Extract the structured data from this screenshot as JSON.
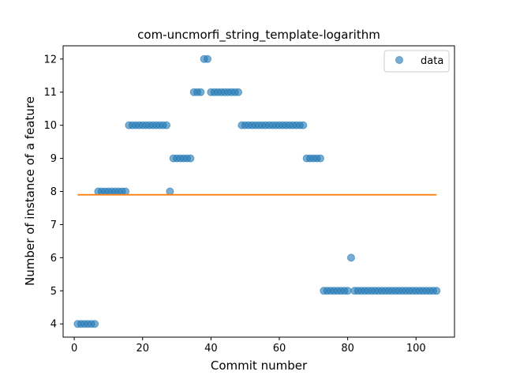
{
  "chart_data": {
    "type": "scatter",
    "title": "com-uncmorfi_string_template-logarithm",
    "xlabel": "Commit number",
    "ylabel": "Number of instance of a feature",
    "xlim": [
      -3.25,
      111.25
    ],
    "ylim": [
      3.6,
      12.4
    ],
    "xticks": [
      0,
      20,
      40,
      60,
      80,
      100
    ],
    "yticks": [
      4,
      5,
      6,
      7,
      8,
      9,
      10,
      11,
      12
    ],
    "grid": false,
    "legend_position": "top-right",
    "colors": {
      "scatter": "#1f77b4",
      "line": "#ff7f0e"
    },
    "series": [
      {
        "name": "data",
        "kind": "scatter",
        "x": [
          1,
          2,
          3,
          4,
          5,
          6,
          7,
          8,
          9,
          10,
          11,
          12,
          13,
          14,
          15,
          16,
          17,
          18,
          19,
          20,
          21,
          22,
          23,
          24,
          25,
          26,
          27,
          28,
          29,
          30,
          31,
          32,
          33,
          34,
          35,
          36,
          37,
          38,
          39,
          40,
          41,
          42,
          43,
          44,
          45,
          46,
          47,
          48,
          49,
          50,
          51,
          52,
          53,
          54,
          55,
          56,
          57,
          58,
          59,
          60,
          61,
          62,
          63,
          64,
          65,
          66,
          67,
          68,
          69,
          70,
          71,
          72,
          73,
          74,
          75,
          76,
          77,
          78,
          79,
          80,
          81,
          82,
          83,
          84,
          85,
          86,
          87,
          88,
          89,
          90,
          91,
          92,
          93,
          94,
          95,
          96,
          97,
          98,
          99,
          100,
          101,
          102,
          103,
          104,
          105,
          106
        ],
        "y": [
          4,
          4,
          4,
          4,
          4,
          4,
          8,
          8,
          8,
          8,
          8,
          8,
          8,
          8,
          8,
          10,
          10,
          10,
          10,
          10,
          10,
          10,
          10,
          10,
          10,
          10,
          10,
          8,
          9,
          9,
          9,
          9,
          9,
          9,
          11,
          11,
          11,
          12,
          12,
          11,
          11,
          11,
          11,
          11,
          11,
          11,
          11,
          11,
          10,
          10,
          10,
          10,
          10,
          10,
          10,
          10,
          10,
          10,
          10,
          10,
          10,
          10,
          10,
          10,
          10,
          10,
          10,
          9,
          9,
          9,
          9,
          9,
          5,
          5,
          5,
          5,
          5,
          5,
          5,
          5,
          6,
          5,
          5,
          5,
          5,
          5,
          5,
          5,
          5,
          5,
          5,
          5,
          5,
          5,
          5,
          5,
          5,
          5,
          5,
          5,
          5,
          5,
          5,
          5,
          5,
          5
        ]
      },
      {
        "kind": "line",
        "x": [
          1,
          106
        ],
        "y": [
          7.9,
          7.9
        ]
      }
    ]
  }
}
